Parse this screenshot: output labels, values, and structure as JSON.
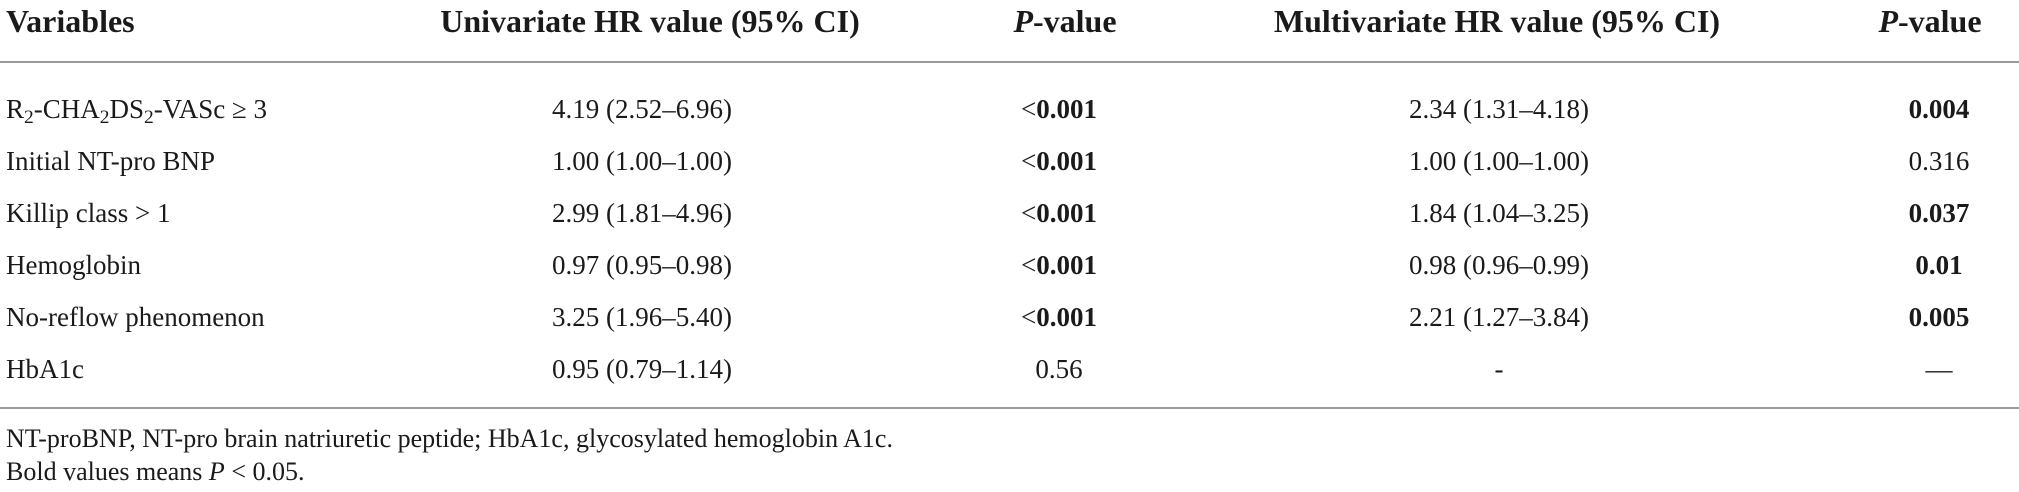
{
  "header": {
    "variables": "Variables",
    "univariate": "Univariate HR value (95% CI)",
    "p_italic": "P",
    "p_suffix": "-value",
    "multivariate": "Multivariate HR value (95% CI)"
  },
  "rows": [
    {
      "var_pre": "R",
      "var_sub1": "2",
      "var_mid": "-CHA",
      "var_sub2": "2",
      "var_mid2": "DS",
      "var_sub3": "2",
      "var_post": "-VASc ≥ 3",
      "uni": "4.19 (2.52–6.96)",
      "p1_lt": "<",
      "p1": "0.001",
      "mul": "2.34 (1.31–4.18)",
      "p2": "0.004"
    },
    {
      "var": "Initial NT-pro BNP",
      "uni": "1.00 (1.00–1.00)",
      "p1_lt": "<",
      "p1": "0.001",
      "mul": "1.00 (1.00–1.00)",
      "p2": "0.316"
    },
    {
      "var": "Killip class > 1",
      "uni": "2.99 (1.81–4.96)",
      "p1_lt": "<",
      "p1": "0.001",
      "mul": "1.84 (1.04–3.25)",
      "p2": "0.037"
    },
    {
      "var": "Hemoglobin",
      "uni": "0.97 (0.95–0.98)",
      "p1_lt": "<",
      "p1": "0.001",
      "mul": "0.98 (0.96–0.99)",
      "p2": "0.01"
    },
    {
      "var": "No-reflow phenomenon",
      "uni": "3.25 (1.96–5.40)",
      "p1_lt": "<",
      "p1": "0.001",
      "mul": "2.21 (1.27–3.84)",
      "p2": "0.005"
    },
    {
      "var": "HbA1c",
      "uni": "0.95 (0.79–1.14)",
      "p1": "0.56",
      "mul": "-",
      "p2": "—"
    }
  ],
  "footnotes": {
    "line1": "NT-proBNP, NT-pro brain natriuretic peptide; HbA1c, glycosylated hemoglobin A1c.",
    "line2_pre": "Bold values means ",
    "line2_p": "P",
    "line2_post": " < 0.05."
  }
}
